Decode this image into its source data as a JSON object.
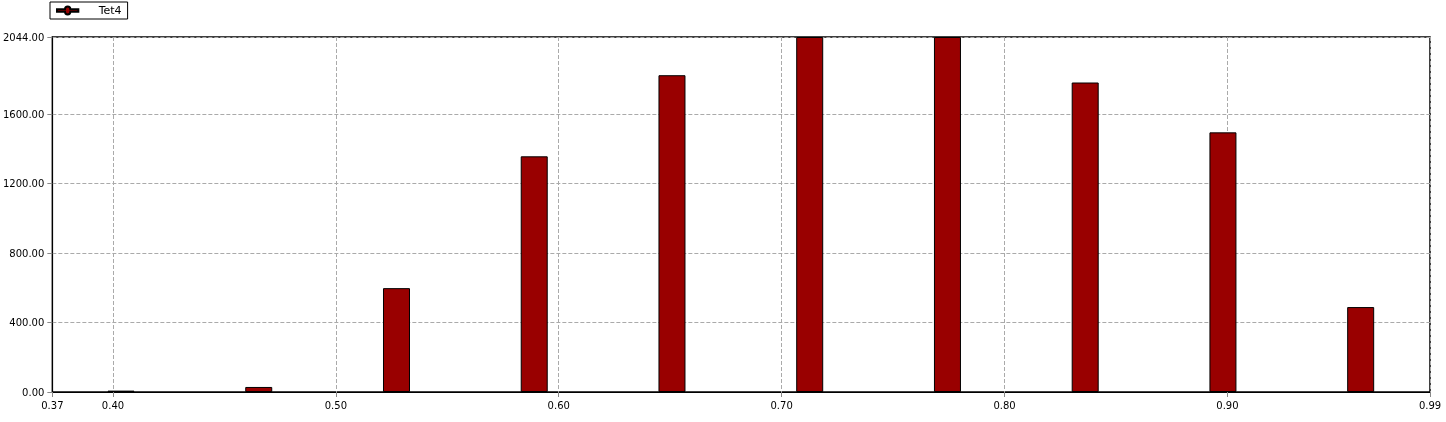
{
  "chart_data": {
    "type": "bar",
    "x": [
      0.4036,
      0.4654,
      0.5272,
      0.589,
      0.6508,
      0.7126,
      0.7744,
      0.8362,
      0.898,
      0.9598
    ],
    "series": [
      {
        "name": "Tet4",
        "color": "#990000",
        "values": [
          8,
          29,
          598,
          1357,
          1824,
          2044,
          2044,
          1782,
          1495,
          489
        ]
      }
    ],
    "xlim": [
      0.3728,
      0.9909
    ],
    "xticks": [
      {
        "value": 0.3728,
        "label": "0.37"
      },
      {
        "value": 0.4,
        "label": "0.40"
      },
      {
        "value": 0.5,
        "label": "0.50"
      },
      {
        "value": 0.6,
        "label": "0.60"
      },
      {
        "value": 0.7,
        "label": "0.70"
      },
      {
        "value": 0.8,
        "label": "0.80"
      },
      {
        "value": 0.9,
        "label": "0.90"
      },
      {
        "value": 0.9909,
        "label": "0.99"
      }
    ],
    "ylim": [
      0,
      2044
    ],
    "yticks": [
      {
        "value": 0,
        "label": "0.00"
      },
      {
        "value": 400,
        "label": "400.00"
      },
      {
        "value": 800,
        "label": "800.00"
      },
      {
        "value": 1200,
        "label": "1200.00"
      },
      {
        "value": 1600,
        "label": "1600.00"
      },
      {
        "value": 2044,
        "label": "2044.00"
      }
    ],
    "grid": true,
    "legend": "top left"
  }
}
